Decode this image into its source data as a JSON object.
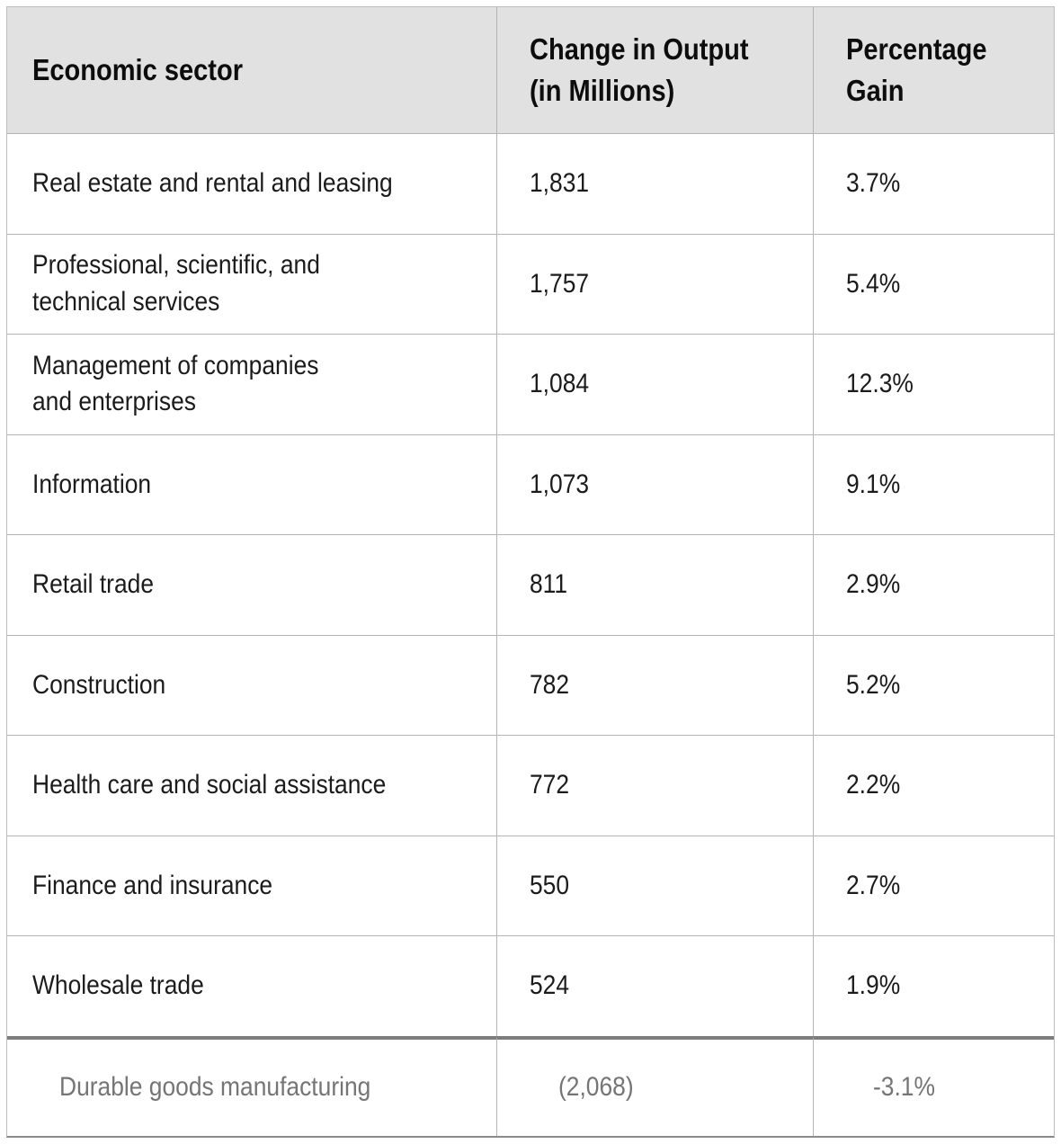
{
  "table": {
    "headers": {
      "sector": "Economic sector",
      "output": "Change in Output\n(in Millions)",
      "gain": "Percentage\nGain"
    },
    "rows": [
      {
        "sector": "Real estate and rental and leasing",
        "output": "1,831",
        "gain": "3.7%"
      },
      {
        "sector": "Professional, scientific, and\ntechnical services",
        "output": "1,757",
        "gain": "5.4%"
      },
      {
        "sector": "Management of companies\nand enterprises",
        "output": "1,084",
        "gain": "12.3%"
      },
      {
        "sector": "Information",
        "output": "1,073",
        "gain": "9.1%"
      },
      {
        "sector": "Retail trade",
        "output": "811",
        "gain": "2.9%"
      },
      {
        "sector": "Construction",
        "output": "782",
        "gain": "5.2%"
      },
      {
        "sector": "Health care and social assistance",
        "output": "772",
        "gain": "2.2%"
      },
      {
        "sector": "Finance and insurance",
        "output": "550",
        "gain": "2.7%"
      },
      {
        "sector": "Wholesale trade",
        "output": "524",
        "gain": "1.9%"
      },
      {
        "sector": "Durable goods manufacturing",
        "output": "(2,068)",
        "gain": "-3.1%"
      }
    ],
    "colors": {
      "header_bg": "#e1e1e1",
      "body_text": "#1b1b1b",
      "muted_text": "#757575",
      "thin_border": "#b4b4b4",
      "thick_divider": "#7d7d7d",
      "bottom_border": "#8a8a8a"
    }
  },
  "chart_data": {
    "type": "table",
    "title": "",
    "columns": [
      "Economic sector",
      "Change in Output (in Millions)",
      "Percentage Gain"
    ],
    "categories": [
      "Real estate and rental and leasing",
      "Professional, scientific, and technical services",
      "Management of companies and enterprises",
      "Information",
      "Retail trade",
      "Construction",
      "Health care and social assistance",
      "Finance and insurance",
      "Wholesale trade",
      "Durable goods manufacturing"
    ],
    "series": [
      {
        "name": "Change in Output (in Millions)",
        "values": [
          1831,
          1757,
          1084,
          1073,
          811,
          782,
          772,
          550,
          524,
          -2068
        ]
      },
      {
        "name": "Percentage Gain",
        "values": [
          3.7,
          5.4,
          12.3,
          9.1,
          2.9,
          5.2,
          2.2,
          2.7,
          1.9,
          -3.1
        ]
      }
    ]
  }
}
